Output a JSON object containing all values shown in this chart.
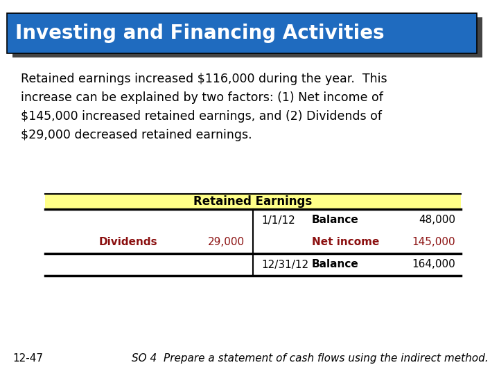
{
  "title": "Investing and Financing Activities",
  "title_bg": "#1F6BBF",
  "title_shadow": "#444444",
  "title_text_color": "#FFFFFF",
  "body_text_line1": "Retained earnings increased $116,000 during the year.  This",
  "body_text_line2": "increase can be explained by two factors: (1) Net income of",
  "body_text_line3": "$145,000 increased retained earnings, and (2) Dividends of",
  "body_text_line4": "$29,000 decreased retained earnings.",
  "body_text_color": "#000000",
  "table_header": "Retained Earnings",
  "table_header_bg": "#FFFF88",
  "table_header_text_color": "#000000",
  "dividends_label": "Dividends",
  "dividends_value": "29,000",
  "dividends_color": "#8B1010",
  "date1": "1/1/12",
  "balance1_label": "Balance",
  "balance1_value": "48,000",
  "netincome_label": "Net income",
  "netincome_value": "145,000",
  "netincome_color": "#8B1010",
  "date2": "12/31/12",
  "balance2_label": "Balance",
  "balance2_value": "164,000",
  "footer_left": "12-47",
  "footer_right": "SO 4  Prepare a statement of cash flows using the indirect method.",
  "footer_text_color": "#000000",
  "bg_color": "#FFFFFF"
}
